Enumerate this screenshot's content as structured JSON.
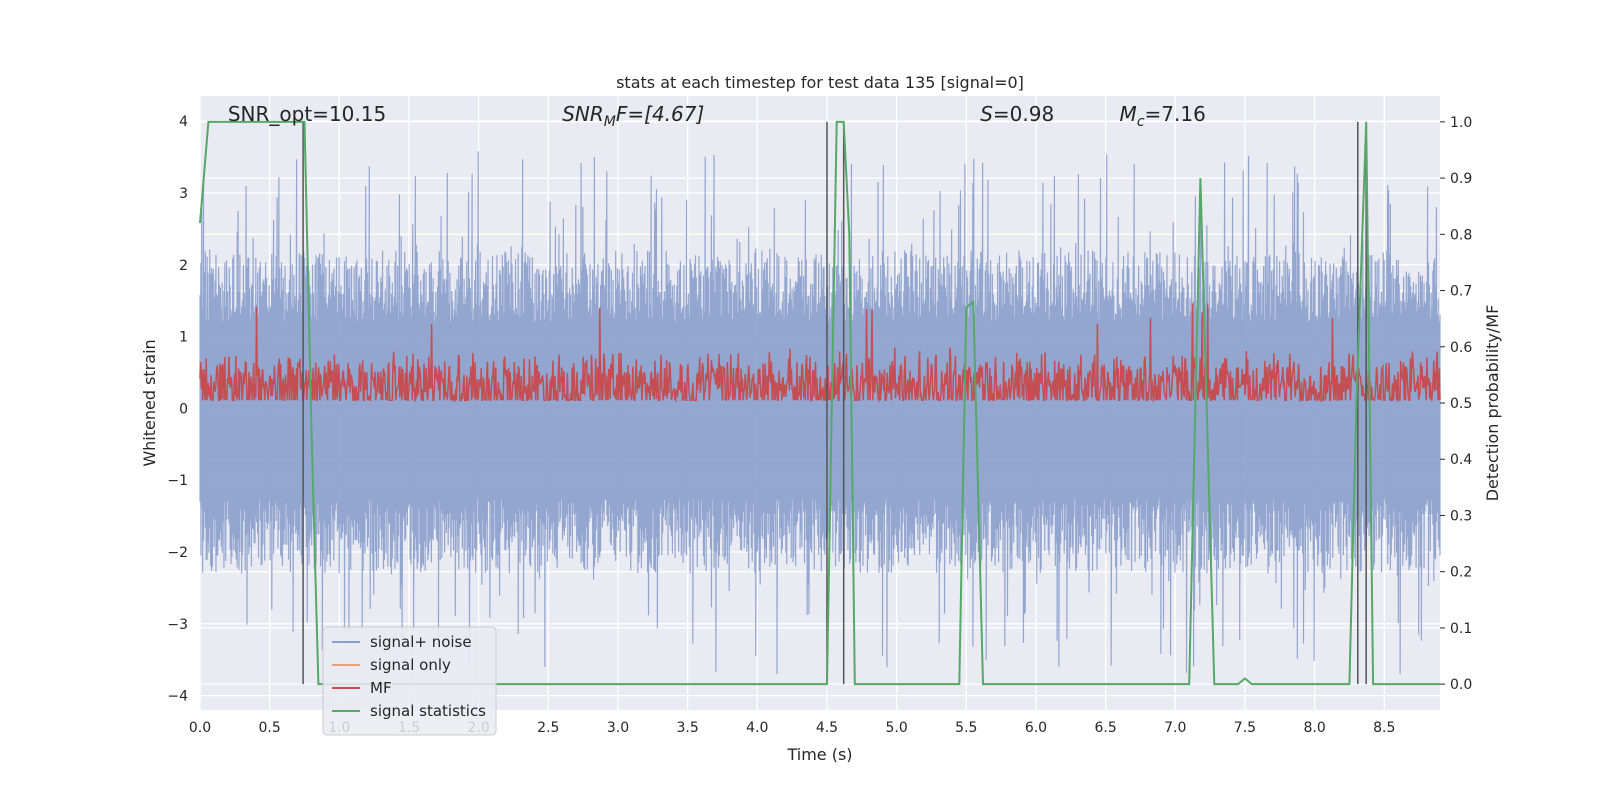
{
  "chart_data": {
    "type": "line",
    "title": "stats at each timestep for test data 135 [signal=0]",
    "xlabel": "Time (s)",
    "ylabel": "Whitened strain",
    "ylabel_right": "Detection probability/MF",
    "xlim": [
      0,
      8.9
    ],
    "ylim": [
      -4.2,
      4.35
    ],
    "ylim_right": [
      -0.046,
      1.046
    ],
    "grid": true,
    "x_ticks": [
      0.0,
      0.5,
      1.0,
      1.5,
      2.0,
      2.5,
      3.0,
      3.5,
      4.0,
      4.5,
      5.0,
      5.5,
      6.0,
      6.5,
      7.0,
      7.5,
      8.0,
      8.5
    ],
    "x_tick_labels": [
      "0.0",
      "0.5",
      "1.0",
      "1.5",
      "2.0",
      "2.5",
      "3.0",
      "3.5",
      "4.0",
      "4.5",
      "5.0",
      "5.5",
      "6.0",
      "6.5",
      "7.0",
      "7.5",
      "8.0",
      "8.5"
    ],
    "y_ticks": [
      -4,
      -3,
      -2,
      -1,
      0,
      1,
      2,
      3,
      4
    ],
    "y_tick_labels": [
      "−4",
      "−3",
      "−2",
      "−1",
      "0",
      "1",
      "2",
      "3",
      "4"
    ],
    "y_right_ticks": [
      0.0,
      0.1,
      0.2,
      0.3,
      0.4,
      0.5,
      0.6,
      0.7,
      0.8,
      0.9,
      1.0
    ],
    "y_right_tick_labels": [
      "0.0",
      "0.1",
      "0.2",
      "0.3",
      "0.4",
      "0.5",
      "0.6",
      "0.7",
      "0.8",
      "0.9",
      "1.0"
    ],
    "annotations": [
      {
        "text": "SNR_opt=10.15",
        "x": 0.2,
        "y": 4.1
      },
      {
        "text": "SNR",
        "sub": "M",
        "tail": "F=[4.67]",
        "italic": true,
        "x": 2.6,
        "y": 4.1
      },
      {
        "text": "S",
        "tail": "=0.98",
        "italic": true,
        "x": 5.6,
        "y": 4.1
      },
      {
        "text": "M",
        "sub": "c",
        "tail": "=7.16",
        "italic": true,
        "x": 6.6,
        "y": 4.1
      }
    ],
    "legend": {
      "position": "lower-left",
      "entries": [
        "signal+ noise",
        "signal only",
        "MF",
        "signal statistics"
      ]
    },
    "series": [
      {
        "name": "signal+ noise",
        "color": "#8a9fcc",
        "kind": "noise",
        "envelope_upper": 2.2,
        "envelope_lower": -2.3,
        "peak_max": 3.6
      },
      {
        "name": "signal only",
        "color": "#e8a07a",
        "values": []
      },
      {
        "name": "MF",
        "color": "#c44e52",
        "kind": "mf",
        "axis": "right",
        "mean": 0.53,
        "spread": 0.07
      },
      {
        "name": "signal statistics",
        "color": "#55a868",
        "axis": "right",
        "x": [
          0.0,
          0.06,
          0.12,
          0.5,
          0.73,
          0.75,
          0.8,
          0.85,
          4.45,
          4.5,
          4.57,
          4.62,
          4.66,
          4.7,
          5.0,
          5.45,
          5.5,
          5.55,
          5.62,
          7.1,
          7.18,
          7.28,
          7.45,
          7.5,
          7.55,
          8.25,
          8.3,
          8.37,
          8.42,
          8.9
        ],
        "y": [
          0.82,
          1.0,
          1.0,
          1.0,
          1.0,
          1.0,
          0.45,
          0.0,
          0.0,
          0.0,
          1.0,
          1.0,
          0.8,
          0.0,
          0.0,
          0.0,
          0.67,
          0.68,
          0.0,
          0.0,
          0.9,
          0.0,
          0.0,
          0.01,
          0.0,
          0.0,
          0.5,
          1.0,
          0.0,
          0.0
        ]
      }
    ],
    "vertical_lines": [
      {
        "x": 0.74,
        "color": "#555555"
      },
      {
        "x": 4.5,
        "color": "#555555"
      },
      {
        "x": 4.62,
        "color": "#555555"
      },
      {
        "x": 8.31,
        "color": "#555555"
      },
      {
        "x": 8.37,
        "color": "#555555"
      }
    ]
  }
}
